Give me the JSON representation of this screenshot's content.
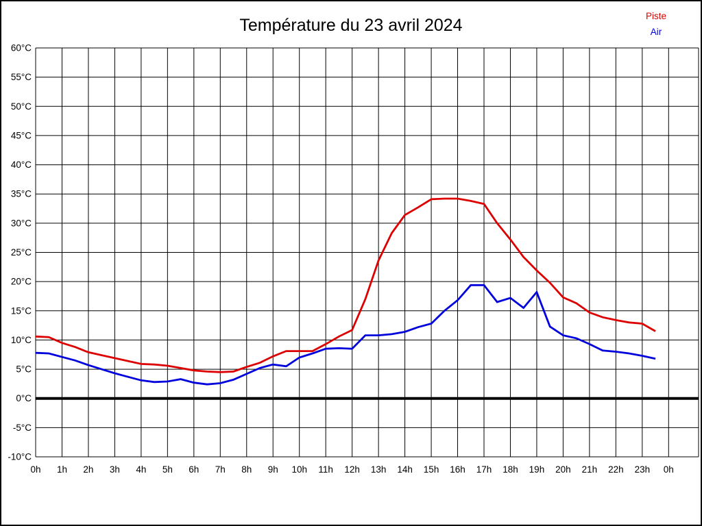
{
  "title": "Température du 23 avril 2024",
  "legend": [
    {
      "label": "Piste",
      "color": "#dd0000"
    },
    {
      "label": "Air",
      "color": "#0000dd"
    }
  ],
  "colors": {
    "grid": "#000000",
    "zero_line": "#000000",
    "text": "#000000",
    "background": "#ffffff"
  },
  "chart_data": {
    "type": "line",
    "title": "Température du 23 avril 2024",
    "xlabel": "",
    "ylabel": "",
    "xlim": [
      0,
      24
    ],
    "ylim": [
      -10,
      60
    ],
    "y_step": 5,
    "grid": true,
    "zero_line": true,
    "legend_position": "top-right",
    "x_tick_labels": [
      "0h",
      "1h",
      "2h",
      "3h",
      "4h",
      "5h",
      "6h",
      "7h",
      "8h",
      "9h",
      "10h",
      "11h",
      "12h",
      "13h",
      "14h",
      "15h",
      "16h",
      "17h",
      "18h",
      "19h",
      "20h",
      "21h",
      "22h",
      "23h",
      "0h"
    ],
    "y_tick_labels": [
      "60°C",
      "55°C",
      "50°C",
      "45°C",
      "40°C",
      "35°C",
      "30°C",
      "25°C",
      "20°C",
      "15°C",
      "10°C",
      "5°C",
      "0°C",
      "-5°C",
      "-10°C"
    ],
    "x": [
      0,
      0.5,
      1,
      1.5,
      2,
      2.5,
      3,
      3.5,
      4,
      4.5,
      5,
      5.5,
      6,
      6.5,
      7,
      7.5,
      8,
      8.5,
      9,
      9.5,
      10,
      10.5,
      11,
      11.5,
      12,
      12.5,
      13,
      13.5,
      14,
      14.5,
      15,
      15.5,
      16,
      16.5,
      17,
      17.5,
      18,
      18.5,
      19,
      19.5,
      20,
      20.5,
      21,
      21.5,
      22,
      22.5,
      23,
      23.5
    ],
    "series": [
      {
        "name": "Piste",
        "color": "#dd0000",
        "values": [
          10.6,
          10.5,
          9.5,
          8.8,
          7.9,
          7.4,
          6.9,
          6.4,
          5.9,
          5.8,
          5.6,
          5.2,
          4.8,
          4.6,
          4.5,
          4.6,
          5.4,
          6.1,
          7.2,
          8.1,
          8.1,
          8.1,
          9.3,
          10.6,
          11.7,
          17.0,
          23.6,
          28.3,
          31.4,
          32.7,
          34.1,
          34.2,
          34.2,
          33.8,
          33.3,
          30.0,
          27.2,
          24.2,
          21.9,
          19.8,
          17.3,
          16.3,
          14.7,
          13.9,
          13.4,
          13.0,
          12.8,
          11.5
        ]
      },
      {
        "name": "Air",
        "color": "#0000dd",
        "values": [
          7.8,
          7.7,
          7.1,
          6.5,
          5.7,
          5.0,
          4.3,
          3.7,
          3.1,
          2.8,
          2.9,
          3.3,
          2.7,
          2.4,
          2.6,
          3.2,
          4.2,
          5.2,
          5.8,
          5.5,
          7.0,
          7.7,
          8.5,
          8.6,
          8.5,
          10.8,
          10.8,
          11.0,
          11.4,
          12.2,
          12.8,
          15.0,
          16.8,
          19.4,
          19.4,
          16.5,
          17.2,
          15.5,
          18.2,
          12.3,
          10.8,
          10.3,
          9.3,
          8.2,
          8.0,
          7.7,
          7.3,
          6.8
        ]
      }
    ]
  }
}
